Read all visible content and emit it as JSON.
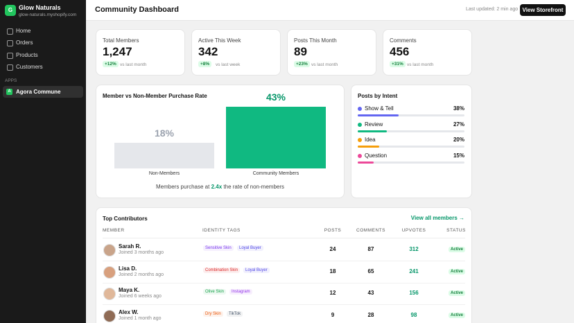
{
  "store": {
    "initial": "G",
    "name": "Glow Naturals",
    "url": "glow-naturals.myshopify.com"
  },
  "nav": [
    "Home",
    "Orders",
    "Products",
    "Customers"
  ],
  "apps_label": "APPS",
  "app": {
    "icon": "A",
    "name": "Agora Commune"
  },
  "header": {
    "title": "Community Dashboard",
    "updated": "Last updated: 2 min ago",
    "button": "View Storefront"
  },
  "stats": [
    {
      "label": "Total Members",
      "value": "1,247",
      "change": "+12%",
      "period": "vs last month"
    },
    {
      "label": "Active This Week",
      "value": "342",
      "change": "+8%",
      "period": "vs last week"
    },
    {
      "label": "Posts This Month",
      "value": "89",
      "change": "+23%",
      "period": "vs last month"
    },
    {
      "label": "Comments",
      "value": "456",
      "change": "+31%",
      "period": "vs last month"
    }
  ],
  "purchase_rate": {
    "title": "Member vs Non-Member Purchase Rate",
    "bars": [
      {
        "label": "Non-Members",
        "value": 18,
        "value_label": "18%",
        "color": "#e5e7eb",
        "text_color": "#9ca3af"
      },
      {
        "label": "Community Members",
        "value": 43,
        "value_label": "43%",
        "color": "#10b981",
        "text_color": "#059669"
      }
    ],
    "note_start": "Members purchase at",
    "multiplier": "2.4x",
    "note_end": "the rate of non-members"
  },
  "intents": {
    "title": "Posts by Intent",
    "items": [
      {
        "name": "Show & Tell",
        "value": 38,
        "value_label": "38%",
        "color": "#6366f1"
      },
      {
        "name": "Review",
        "value": 27,
        "value_label": "27%",
        "color": "#10b981"
      },
      {
        "name": "Idea",
        "value": 20,
        "value_label": "20%",
        "color": "#f59e0b"
      },
      {
        "name": "Question",
        "value": 15,
        "value_label": "15%",
        "color": "#ec4899"
      }
    ]
  },
  "contributors": {
    "title": "Top Contributors",
    "link": "View all members →",
    "columns": [
      "MEMBER",
      "IDENTITY TAGS",
      "POSTS",
      "COMMENTS",
      "UPVOTES",
      "STATUS"
    ],
    "rows": [
      {
        "name": "Sarah R.",
        "joined": "Joined 3 months ago",
        "tags": [
          {
            "text": "Sensitive Skin",
            "color": "#7c3aed"
          },
          {
            "text": "Loyal Buyer",
            "color": "#4f46e5"
          }
        ],
        "posts": 24,
        "comments": 87,
        "upvotes": 312,
        "status": "Active"
      },
      {
        "name": "Lisa D.",
        "joined": "Joined 2 months ago",
        "tags": [
          {
            "text": "Combination Skin",
            "color": "#dc2626"
          },
          {
            "text": "Loyal Buyer",
            "color": "#4f46e5"
          }
        ],
        "posts": 18,
        "comments": 65,
        "upvotes": 241,
        "status": "Active"
      },
      {
        "name": "Maya K.",
        "joined": "Joined 6 weeks ago",
        "tags": [
          {
            "text": "Olive Skin",
            "color": "#16a34a"
          },
          {
            "text": "Instagram",
            "color": "#9333ea"
          }
        ],
        "posts": 12,
        "comments": 43,
        "upvotes": 156,
        "status": "Active"
      },
      {
        "name": "Alex W.",
        "joined": "Joined 1 month ago",
        "tags": [
          {
            "text": "Dry Skin",
            "color": "#ea580c"
          },
          {
            "text": "TikTok",
            "color": "#475569"
          }
        ],
        "posts": 9,
        "comments": 28,
        "upvotes": 98,
        "status": "Active"
      }
    ]
  }
}
